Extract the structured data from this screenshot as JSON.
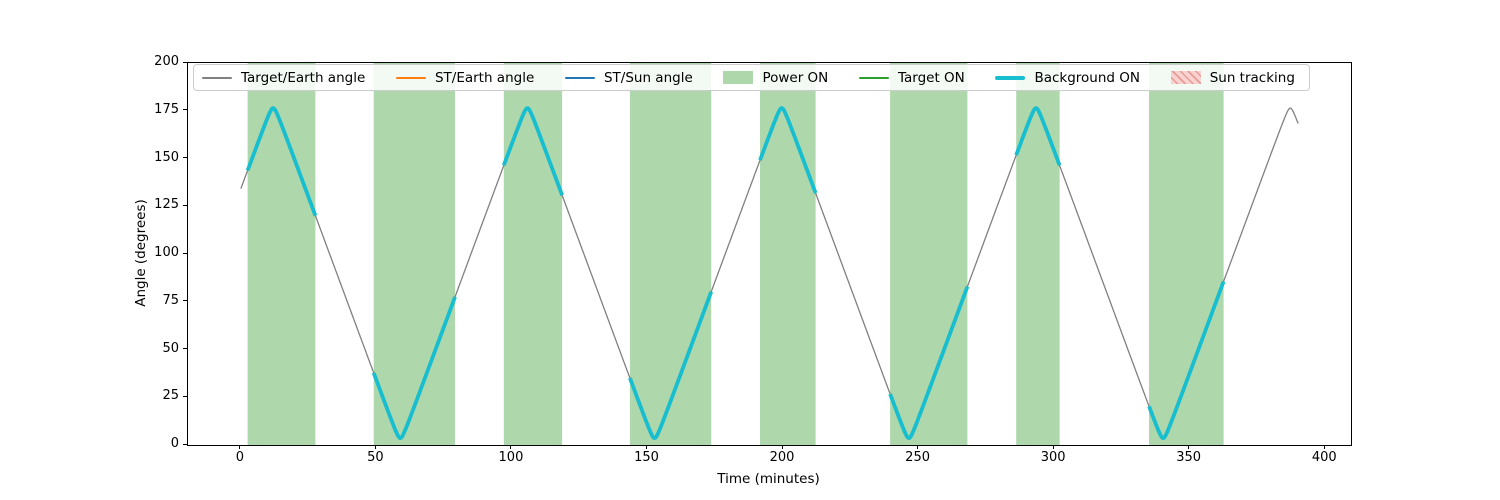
{
  "window": {
    "background": "#ffffff"
  },
  "axes": {
    "xlabel": "Time (minutes)",
    "ylabel": "Angle (degrees)",
    "x_ticks": [
      0,
      50,
      100,
      150,
      200,
      250,
      300,
      350,
      400
    ],
    "y_ticks": [
      0,
      25,
      50,
      75,
      100,
      125,
      150,
      175,
      200
    ],
    "spine_color": "#000000",
    "tick_color": "#000000"
  },
  "legend": {
    "items": [
      {
        "label": "Target/Earth angle",
        "swatch": "line",
        "color": "#808080"
      },
      {
        "label": "ST/Earth angle",
        "swatch": "line",
        "color": "#ff7f0e"
      },
      {
        "label": "ST/Sun angle",
        "swatch": "line",
        "color": "#1f77b4"
      },
      {
        "label": "Power ON",
        "swatch": "patch",
        "color": "#aed7ab"
      },
      {
        "label": "Target ON",
        "swatch": "line",
        "color": "#2ca02c"
      },
      {
        "label": "Background ON",
        "swatch": "thick-line",
        "color": "#17becf"
      },
      {
        "label": "Sun tracking",
        "swatch": "hatch-patch",
        "color": "#f7d2d0",
        "hatch_color": "#e89a94"
      }
    ]
  },
  "chart_data": {
    "type": "line",
    "title": "",
    "xlabel": "Time (minutes)",
    "ylabel": "Angle (degrees)",
    "xlim": [
      -19.5,
      409.5
    ],
    "ylim": [
      0,
      200
    ],
    "grid": false,
    "legend_position": "upper inside, single row, 7 columns",
    "series": [
      {
        "name": "Target/Earth angle",
        "color": "#808080",
        "line_width": 1.3,
        "visible": true,
        "model": {
          "shape": "smoothed triangle wave: angle(t)=deg(acos(cos(rad(min_deg))*cos(2*pi*(t-first_trough_t)/period_min)))",
          "t_start": 0,
          "t_end": 390,
          "period_min": 93.8,
          "first_trough_t": 58.8,
          "min_deg": 3.6,
          "max_deg": 176.4
        },
        "key_points": [
          {
            "t": 0,
            "deg": 134
          },
          {
            "t": 11.9,
            "deg": 176.4
          },
          {
            "t": 58.8,
            "deg": 3.6
          },
          {
            "t": 105.7,
            "deg": 176.4
          },
          {
            "t": 152.6,
            "deg": 3.6
          },
          {
            "t": 199.5,
            "deg": 176.4
          },
          {
            "t": 246.4,
            "deg": 3.6
          },
          {
            "t": 293.3,
            "deg": 176.4
          },
          {
            "t": 340.2,
            "deg": 3.6
          },
          {
            "t": 387.1,
            "deg": 176.4
          },
          {
            "t": 390,
            "deg": 168
          }
        ]
      },
      {
        "name": "ST/Earth angle",
        "color": "#ff7f0e",
        "visible": false,
        "note": "legend entry only; no curve visible in plot"
      },
      {
        "name": "ST/Sun angle",
        "color": "#1f77b4",
        "visible": false,
        "note": "legend entry only; no curve visible in plot"
      },
      {
        "name": "Target ON",
        "color": "#2ca02c",
        "visible": false,
        "note": "legend entry only; no curve visible in plot"
      },
      {
        "name": "Background ON",
        "color": "#17becf",
        "line_width": 3.8,
        "visible": true,
        "description": "thick overlay of Target/Earth angle curve during intervals",
        "intervals_min": [
          [
            2.5,
            27.5
          ],
          [
            49,
            79
          ],
          [
            97,
            118.5
          ],
          [
            143.5,
            173.5
          ],
          [
            191.5,
            212
          ],
          [
            239.5,
            268
          ],
          [
            286,
            302
          ],
          [
            335,
            362.5
          ]
        ]
      },
      {
        "name": "Sun tracking",
        "color": "#f7d2d0",
        "visible": false,
        "note": "legend entry only; no shaded span visible in plot"
      }
    ],
    "power_on_spans_min": [
      [
        2.5,
        27.5
      ],
      [
        49,
        79
      ],
      [
        97,
        118.5
      ],
      [
        143.5,
        173.5
      ],
      [
        191.5,
        212
      ],
      [
        239.5,
        268
      ],
      [
        286,
        302
      ],
      [
        335,
        362.5
      ]
    ],
    "power_on_span_color": "#aed7ab"
  }
}
